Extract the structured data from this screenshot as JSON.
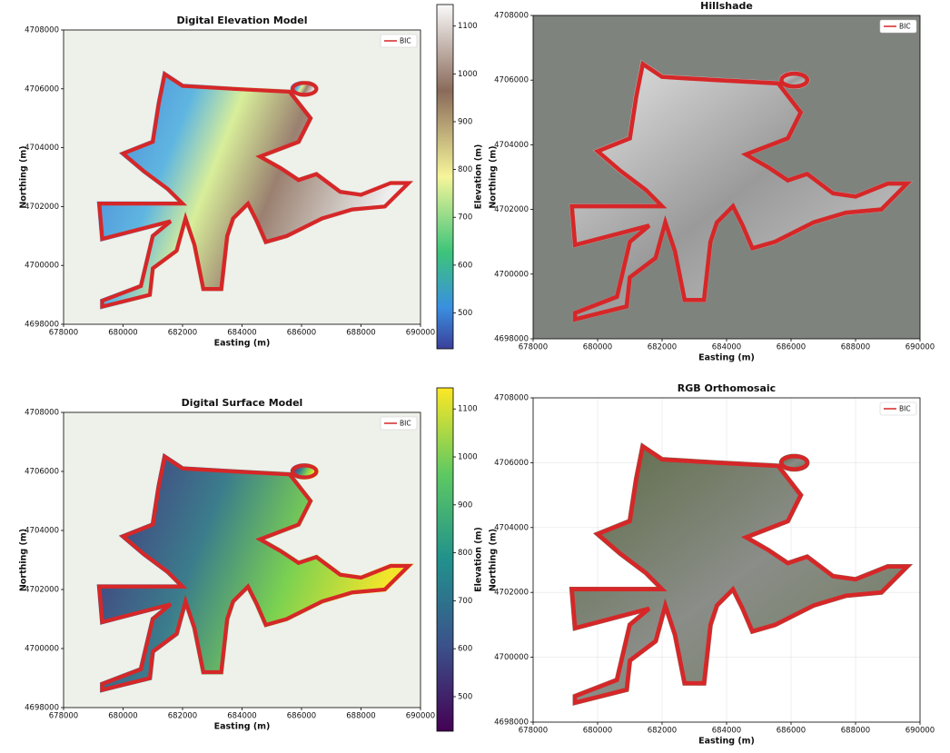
{
  "chart_data": [
    {
      "type": "map",
      "title": "Digital Elevation Model",
      "xlabel": "Easting (m)",
      "ylabel": "Northing (m)",
      "xlim": [
        678000,
        690000
      ],
      "ylim": [
        4698000,
        4708000
      ],
      "xticks": [
        678000,
        680000,
        682000,
        684000,
        686000,
        688000,
        690000
      ],
      "yticks": [
        4698000,
        4700000,
        4702000,
        4704000,
        4706000,
        4708000
      ],
      "boundary": {
        "name": "BIC",
        "color": "#d62728"
      },
      "colorbar": {
        "label": "Elevation (m)",
        "cmap": "terrain",
        "lim": [
          425,
          1145
        ],
        "ticks": [
          500,
          600,
          700,
          800,
          900,
          1000,
          1100
        ]
      }
    },
    {
      "type": "map",
      "title": "Hillshade",
      "xlabel": "Easting (m)",
      "ylabel": "Northing (m)",
      "xlim": [
        678000,
        690000
      ],
      "ylim": [
        4698000,
        4708000
      ],
      "xticks": [
        678000,
        680000,
        682000,
        684000,
        686000,
        688000,
        690000
      ],
      "yticks": [
        4698000,
        4700000,
        4702000,
        4704000,
        4706000,
        4708000
      ],
      "boundary": {
        "name": "BIC",
        "color": "#d62728"
      }
    },
    {
      "type": "map",
      "title": "Digital Surface Model",
      "xlabel": "Easting (m)",
      "ylabel": "Northing (m)",
      "xlim": [
        678000,
        690000
      ],
      "ylim": [
        4698000,
        4708000
      ],
      "xticks": [
        678000,
        680000,
        682000,
        684000,
        686000,
        688000,
        690000
      ],
      "yticks": [
        4698000,
        4700000,
        4702000,
        4704000,
        4706000,
        4708000
      ],
      "boundary": {
        "name": "BIC",
        "color": "#d62728"
      },
      "colorbar": {
        "label": "Elevation (m)",
        "cmap": "viridis",
        "lim": [
          428,
          1144
        ],
        "ticks": [
          500,
          600,
          700,
          800,
          900,
          1000,
          1100
        ]
      }
    },
    {
      "type": "map",
      "title": "RGB Orthomosaic",
      "xlabel": "Easting (m)",
      "ylabel": "Northing (m)",
      "xlim": [
        678000,
        690000
      ],
      "ylim": [
        4698000,
        4708000
      ],
      "xticks": [
        678000,
        680000,
        682000,
        684000,
        686000,
        688000,
        690000
      ],
      "yticks": [
        4698000,
        4700000,
        4702000,
        4704000,
        4706000,
        4708000
      ],
      "boundary": {
        "name": "BIC",
        "color": "#d62728"
      }
    }
  ]
}
